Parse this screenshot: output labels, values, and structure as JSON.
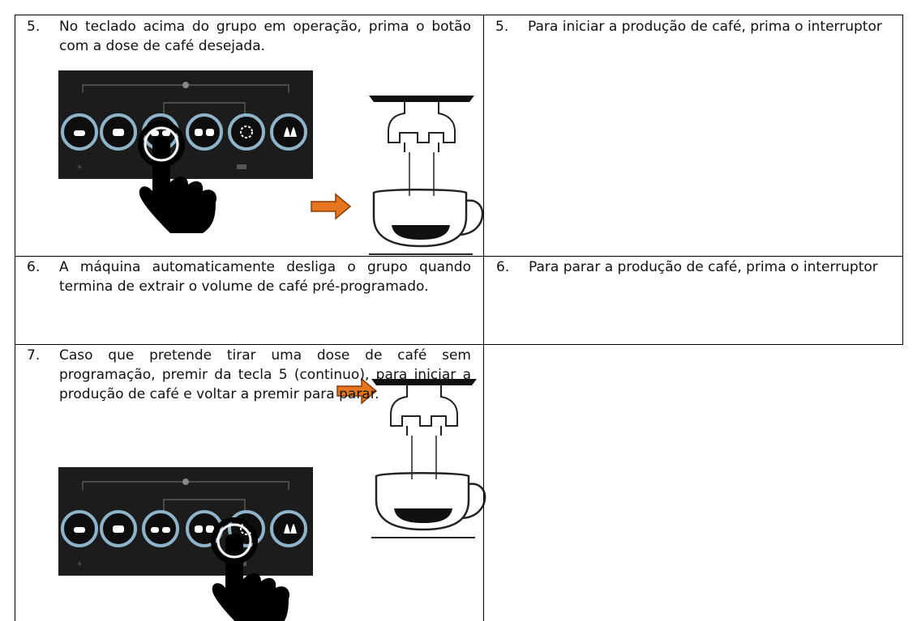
{
  "table": {
    "rows": [
      {
        "left": {
          "number": "5.",
          "text": "No teclado acima do grupo em operação, prima o botão com a dose de café desejada."
        },
        "right": {
          "number": "5.",
          "text": "Para iniciar a produção de café, prima o interruptor"
        }
      },
      {
        "left": {
          "number": "6.",
          "text": "A máquina automaticamente desliga o grupo quando termina de extrair o volume de café pré-programado."
        },
        "right": {
          "number": "6.",
          "text": "Para parar a produção de café, prima o interruptor"
        }
      },
      {
        "left": {
          "number": "7.",
          "text": "Caso que pretende tirar uma dose de café sem programação, premir da tecla 5 (continuo), para iniciar a produção de café e voltar a premir para parar."
        }
      }
    ]
  }
}
